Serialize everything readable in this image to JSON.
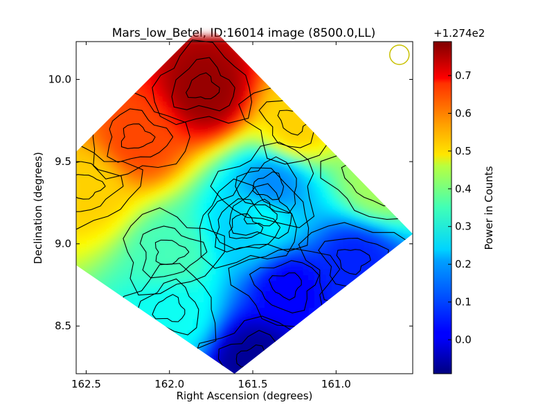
{
  "chart_data": {
    "type": "heatmap",
    "title": "Mars_low_Betel, ID:16014 image (8500.0,LL)",
    "xlabel": "Right Ascension (degrees)",
    "ylabel": "Declination (degrees)",
    "xlim": [
      162.56,
      160.54
    ],
    "ylim": [
      8.21,
      10.23
    ],
    "x_ticks": [
      "162.5",
      "162.0",
      "161.5",
      "161.0"
    ],
    "x_tick_values": [
      162.5,
      162.0,
      161.5,
      161.0
    ],
    "y_ticks": [
      "10.0",
      "9.5",
      "9.0",
      "8.5"
    ],
    "y_tick_values": [
      10.0,
      9.5,
      9.0,
      8.5
    ],
    "footprint": "diamond",
    "footprint_vertices": [
      [
        161.78,
        10.35
      ],
      [
        160.54,
        9.06
      ],
      [
        161.61,
        8.21
      ],
      [
        162.56,
        8.87
      ],
      [
        162.56,
        9.56
      ]
    ],
    "beam_marker": {
      "ra": 160.62,
      "dec": 10.15,
      "color": "#c8c000"
    },
    "colorbar": {
      "label": "Power in Counts",
      "offset_text": "+1.274e2",
      "range": [
        -0.09,
        0.79
      ],
      "ticks": [
        "0.0",
        "0.1",
        "0.2",
        "0.3",
        "0.4",
        "0.5",
        "0.6",
        "0.7"
      ],
      "tick_values": [
        0.0,
        0.1,
        0.2,
        0.3,
        0.4,
        0.5,
        0.6,
        0.7
      ],
      "colormap": "jet"
    },
    "features": [
      {
        "ra": 161.8,
        "dec": 9.95,
        "value": 0.77
      },
      {
        "ra": 162.2,
        "dec": 9.65,
        "value": 0.62
      },
      {
        "ra": 162.5,
        "dec": 9.35,
        "value": 0.5
      },
      {
        "ra": 161.25,
        "dec": 9.75,
        "value": 0.5
      },
      {
        "ra": 160.75,
        "dec": 9.4,
        "value": 0.38
      },
      {
        "ra": 161.4,
        "dec": 9.35,
        "value": 0.14
      },
      {
        "ra": 161.45,
        "dec": 9.18,
        "value": 0.24
      },
      {
        "ra": 161.55,
        "dec": 9.1,
        "value": 0.2
      },
      {
        "ra": 162.0,
        "dec": 8.95,
        "value": 0.3
      },
      {
        "ra": 160.9,
        "dec": 8.9,
        "value": 0.05
      },
      {
        "ra": 161.3,
        "dec": 8.75,
        "value": 0.02
      },
      {
        "ra": 161.5,
        "dec": 8.3,
        "value": -0.07
      },
      {
        "ra": 162.0,
        "dec": 8.6,
        "value": 0.25
      }
    ]
  }
}
